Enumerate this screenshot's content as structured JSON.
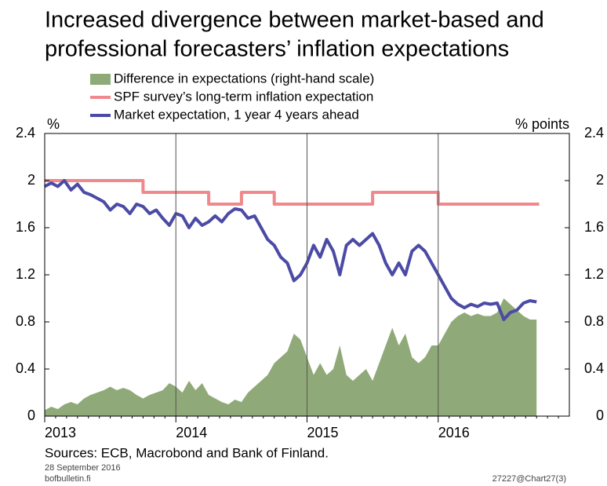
{
  "chart_data": {
    "type": "line",
    "title": [
      "Increased divergence between market-based and",
      "professional forecasters’ inflation expectations"
    ],
    "ylabel": "%",
    "y2label": "% points",
    "source": "Sources: ECB, Macrobond and Bank of Finland.",
    "date": "28 September 2016",
    "site": "bofbulletin.fi",
    "code": "27227@Chart27(3)",
    "xlim": [
      2013,
      2017
    ],
    "xticks": [
      2013,
      2014,
      2015,
      2016
    ],
    "ylim": [
      0,
      2.4
    ],
    "yticks": [
      0,
      0.4,
      0.8,
      1.2,
      1.6,
      2,
      2.4
    ],
    "y2lim": [
      0,
      2.4
    ],
    "y2ticks": [
      0,
      0.4,
      0.8,
      1.2,
      1.6,
      2,
      2.4
    ],
    "grid": "x",
    "series": [
      {
        "name": "Difference in expectations (right-hand scale)",
        "type": "area",
        "axis": "y2",
        "color": "#8faa78",
        "x": [
          2013,
          2013.05,
          2013.1,
          2013.15,
          2013.2,
          2013.25,
          2013.3,
          2013.35,
          2013.4,
          2013.45,
          2013.5,
          2013.55,
          2013.6,
          2013.65,
          2013.7,
          2013.75,
          2013.8,
          2013.85,
          2013.9,
          2013.95,
          2014,
          2014.05,
          2014.1,
          2014.15,
          2014.2,
          2014.25,
          2014.3,
          2014.35,
          2014.4,
          2014.45,
          2014.5,
          2014.55,
          2014.6,
          2014.65,
          2014.7,
          2014.75,
          2014.8,
          2014.85,
          2014.9,
          2014.95,
          2015,
          2015.05,
          2015.1,
          2015.15,
          2015.2,
          2015.25,
          2015.3,
          2015.35,
          2015.4,
          2015.45,
          2015.5,
          2015.55,
          2015.6,
          2015.65,
          2015.7,
          2015.75,
          2015.8,
          2015.85,
          2015.9,
          2015.95,
          2016,
          2016.05,
          2016.1,
          2016.15,
          2016.2,
          2016.25,
          2016.3,
          2016.35,
          2016.4,
          2016.45,
          2016.5,
          2016.55,
          2016.6,
          2016.65,
          2016.7,
          2016.75
        ],
        "values": [
          0.05,
          0.08,
          0.06,
          0.1,
          0.12,
          0.1,
          0.15,
          0.18,
          0.2,
          0.22,
          0.25,
          0.22,
          0.24,
          0.22,
          0.18,
          0.15,
          0.18,
          0.2,
          0.22,
          0.28,
          0.25,
          0.2,
          0.3,
          0.22,
          0.28,
          0.18,
          0.15,
          0.12,
          0.1,
          0.14,
          0.12,
          0.2,
          0.25,
          0.3,
          0.35,
          0.45,
          0.5,
          0.55,
          0.7,
          0.65,
          0.5,
          0.35,
          0.45,
          0.35,
          0.4,
          0.6,
          0.35,
          0.3,
          0.35,
          0.4,
          0.3,
          0.45,
          0.6,
          0.75,
          0.6,
          0.7,
          0.5,
          0.45,
          0.5,
          0.6,
          0.6,
          0.7,
          0.8,
          0.85,
          0.88,
          0.85,
          0.87,
          0.85,
          0.85,
          0.88,
          1.0,
          0.95,
          0.9,
          0.85,
          0.82,
          0.82
        ]
      },
      {
        "name": "SPF survey’s long-term inflation expectation",
        "type": "line",
        "color": "#f0888c",
        "x": [
          2013,
          2013.75,
          2013.75,
          2014.25,
          2014.25,
          2014.5,
          2014.5,
          2014.75,
          2014.75,
          2015.5,
          2015.5,
          2016,
          2016,
          2016.77
        ],
        "values": [
          2,
          2,
          1.9,
          1.9,
          1.8,
          1.8,
          1.9,
          1.9,
          1.8,
          1.8,
          1.9,
          1.9,
          1.8,
          1.8
        ]
      },
      {
        "name": "Market expectation, 1 year 4 years ahead",
        "type": "line",
        "color": "#4b4ba6",
        "x": [
          2013,
          2013.05,
          2013.1,
          2013.15,
          2013.2,
          2013.25,
          2013.3,
          2013.35,
          2013.4,
          2013.45,
          2013.5,
          2013.55,
          2013.6,
          2013.65,
          2013.7,
          2013.75,
          2013.8,
          2013.85,
          2013.9,
          2013.95,
          2014,
          2014.05,
          2014.1,
          2014.15,
          2014.2,
          2014.25,
          2014.3,
          2014.35,
          2014.4,
          2014.45,
          2014.5,
          2014.55,
          2014.6,
          2014.65,
          2014.7,
          2014.75,
          2014.8,
          2014.85,
          2014.9,
          2014.95,
          2015,
          2015.05,
          2015.1,
          2015.15,
          2015.2,
          2015.25,
          2015.3,
          2015.35,
          2015.4,
          2015.45,
          2015.5,
          2015.55,
          2015.6,
          2015.65,
          2015.7,
          2015.75,
          2015.8,
          2015.85,
          2015.9,
          2015.95,
          2016,
          2016.05,
          2016.1,
          2016.15,
          2016.2,
          2016.25,
          2016.3,
          2016.35,
          2016.4,
          2016.45,
          2016.5,
          2016.55,
          2016.6,
          2016.65,
          2016.7,
          2016.75
        ],
        "values": [
          1.95,
          1.98,
          1.95,
          2.0,
          1.92,
          1.97,
          1.9,
          1.88,
          1.85,
          1.82,
          1.75,
          1.8,
          1.78,
          1.72,
          1.8,
          1.78,
          1.72,
          1.75,
          1.68,
          1.62,
          1.72,
          1.7,
          1.6,
          1.68,
          1.62,
          1.65,
          1.7,
          1.65,
          1.72,
          1.76,
          1.75,
          1.68,
          1.7,
          1.6,
          1.5,
          1.45,
          1.35,
          1.3,
          1.15,
          1.2,
          1.3,
          1.45,
          1.35,
          1.5,
          1.4,
          1.2,
          1.45,
          1.5,
          1.45,
          1.5,
          1.55,
          1.45,
          1.3,
          1.2,
          1.3,
          1.2,
          1.4,
          1.45,
          1.4,
          1.3,
          1.2,
          1.1,
          1.0,
          0.95,
          0.92,
          0.95,
          0.93,
          0.96,
          0.95,
          0.96,
          0.82,
          0.88,
          0.9,
          0.96,
          0.98,
          0.97
        ]
      }
    ]
  }
}
